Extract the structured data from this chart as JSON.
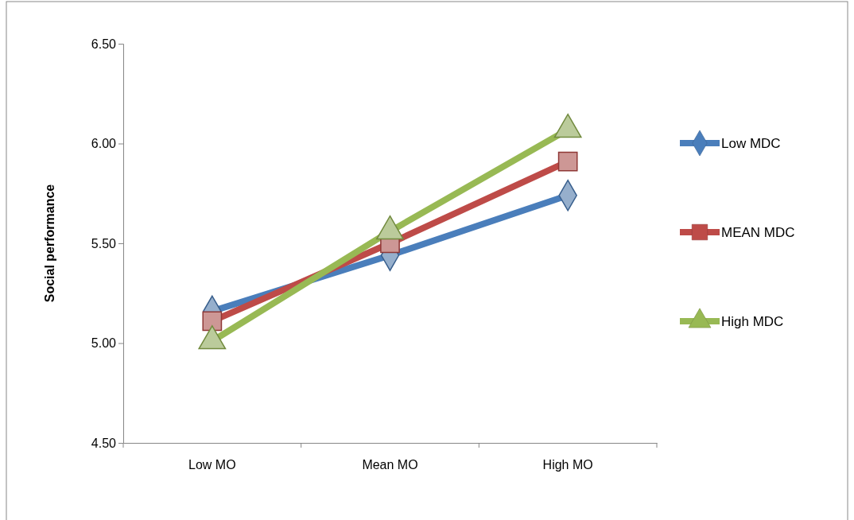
{
  "chart_data": {
    "type": "line",
    "ylabel": "Social performance",
    "categories": [
      "Low MO",
      "Mean MO",
      "High MO"
    ],
    "series": [
      {
        "name": "Low MDC",
        "color": "#4a7ebb",
        "marker": "diamond",
        "values": [
          5.16,
          5.44,
          5.74
        ]
      },
      {
        "name": "MEAN MDC",
        "color": "#be4b48",
        "marker": "square",
        "values": [
          5.11,
          5.5,
          5.91
        ]
      },
      {
        "name": "High MDC",
        "color": "#98b954",
        "marker": "triangle",
        "values": [
          5.01,
          5.56,
          6.07
        ]
      }
    ],
    "ylim": [
      4.5,
      6.5
    ],
    "yticks": [
      {
        "value": 4.5,
        "label": "4.50"
      },
      {
        "value": 5,
        "label": "5.00"
      },
      {
        "value": 5.5,
        "label": "5.50"
      },
      {
        "value": 6,
        "label": "6.00"
      },
      {
        "value": 6.5,
        "label": "6.50"
      }
    ],
    "grid": false,
    "legend": "right",
    "line_style": "solid"
  }
}
